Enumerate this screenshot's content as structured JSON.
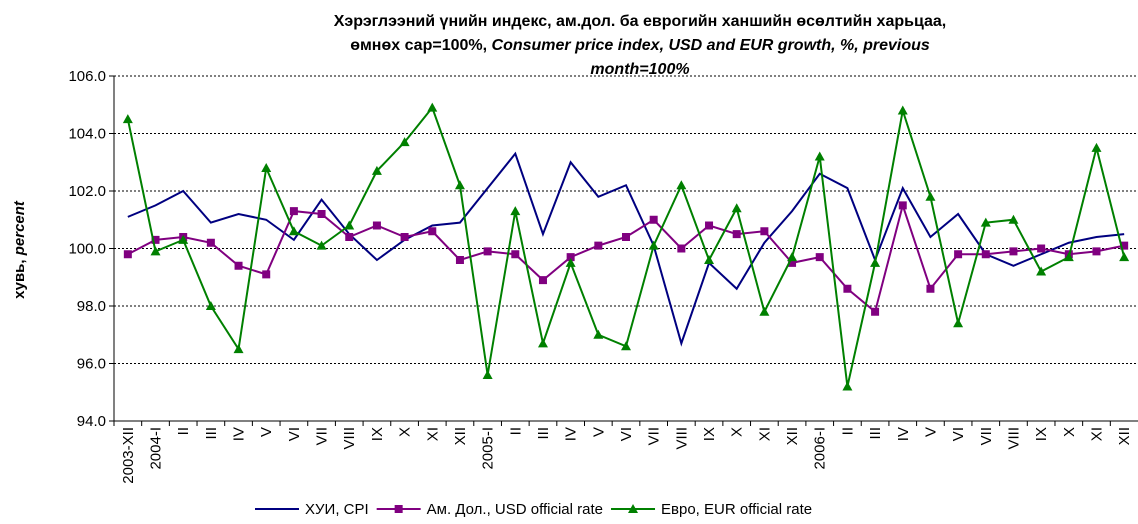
{
  "chart_data": {
    "type": "line",
    "title": [
      "Хэрэглээний үнийн индекс, ам.дол. ба еврогийн ханшийн өсөлтийн харьцаа,",
      "өмнөх сар=100%,",
      "Consumer price index, USD and EUR growth, %, previous",
      "month=100%"
    ],
    "y_label": [
      "хувь,",
      "percent"
    ],
    "categories": [
      "2003-XII",
      "2004-I",
      "II",
      "III",
      "IV",
      "V",
      "VI",
      "VII",
      "VIII",
      "IX",
      "X",
      "XI",
      "XII",
      "2005-I",
      "II",
      "III",
      "IV",
      "V",
      "VI",
      "VII",
      "VIII",
      "IX",
      "X",
      "XI",
      "XII",
      "2006-I",
      "II",
      "III",
      "IV",
      "V",
      "VI",
      "VII",
      "VIII",
      "IX",
      "X",
      "XI",
      "XII"
    ],
    "series": [
      {
        "name": "ХУИ, CPI",
        "color": "#000080",
        "marker": null,
        "values": [
          101.1,
          101.5,
          102.0,
          100.9,
          101.2,
          101.0,
          100.3,
          101.7,
          100.5,
          99.6,
          100.3,
          100.8,
          100.9,
          102.1,
          103.3,
          100.5,
          103.0,
          101.8,
          102.2,
          100.1,
          96.7,
          99.5,
          98.6,
          100.2,
          101.3,
          102.6,
          102.1,
          99.6,
          102.1,
          100.4,
          101.2,
          99.8,
          99.4,
          99.8,
          100.2,
          100.4,
          100.5
        ]
      },
      {
        "name": "Ам. Дол., USD official rate",
        "color": "#800080",
        "marker": "square",
        "values": [
          99.8,
          100.3,
          100.4,
          100.2,
          99.4,
          99.1,
          101.3,
          101.2,
          100.4,
          100.8,
          100.4,
          100.6,
          99.6,
          99.9,
          99.8,
          98.9,
          99.7,
          100.1,
          100.4,
          101.0,
          100.0,
          100.8,
          100.5,
          100.6,
          99.5,
          99.7,
          98.6,
          97.8,
          101.5,
          98.6,
          99.8,
          99.8,
          99.9,
          100.0,
          99.8,
          99.9,
          100.1
        ]
      },
      {
        "name": "Евро, EUR official rate",
        "color": "#008000",
        "marker": "triangle",
        "values": [
          104.5,
          99.9,
          100.3,
          98.0,
          96.5,
          102.8,
          100.6,
          100.1,
          100.8,
          102.7,
          103.7,
          104.9,
          102.2,
          95.6,
          101.3,
          96.7,
          99.5,
          97.0,
          96.6,
          100.1,
          102.2,
          99.6,
          101.4,
          97.8,
          99.7,
          103.2,
          95.2,
          99.5,
          104.8,
          101.8,
          97.4,
          100.9,
          101.0,
          99.2,
          99.7,
          103.5,
          99.7
        ]
      }
    ],
    "ylim": [
      94,
      106
    ],
    "yticks": [
      {
        "value": 94,
        "label": "94.0"
      },
      {
        "value": 96,
        "label": "96.0"
      },
      {
        "value": 98,
        "label": "98.0"
      },
      {
        "value": 100,
        "label": "100.0"
      },
      {
        "value": 102,
        "label": "102.0"
      },
      {
        "value": 104,
        "label": "104.0"
      },
      {
        "value": 106,
        "label": "106.0"
      }
    ],
    "grid": true,
    "legend": "bottom"
  }
}
